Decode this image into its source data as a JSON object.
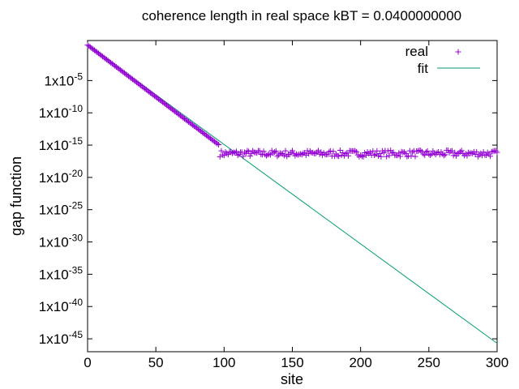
{
  "chart_data": {
    "type": "scatter",
    "title": "coherence length in real space kBT = 0.0400000000",
    "xlabel": "site",
    "ylabel": "gap function",
    "xlim": [
      0,
      300
    ],
    "ylim_log10": [
      -47,
      1.2
    ],
    "yscale": "log",
    "x_ticks": [
      0,
      50,
      100,
      150,
      200,
      250,
      300
    ],
    "x_tick_labels": [
      "0",
      "50",
      "100",
      "150",
      "200",
      "250",
      "300"
    ],
    "y_ticks_log10": [
      -5,
      -10,
      -15,
      -20,
      -25,
      -30,
      -35,
      -40,
      -45
    ],
    "y_tick_labels": [
      {
        "base": "1x10",
        "exp": "-5"
      },
      {
        "base": "1x10",
        "exp": "-10"
      },
      {
        "base": "1x10",
        "exp": "-15"
      },
      {
        "base": "1x10",
        "exp": "-20"
      },
      {
        "base": "1x10",
        "exp": "-25"
      },
      {
        "base": "1x10",
        "exp": "-30"
      },
      {
        "base": "1x10",
        "exp": "-35"
      },
      {
        "base": "1x10",
        "exp": "-40"
      },
      {
        "base": "1x10",
        "exp": "-45"
      }
    ],
    "grid": false,
    "legend_position": "top-right",
    "series": [
      {
        "name": "real",
        "style": "points",
        "marker": "+",
        "color": "#9400d3",
        "decay_segment": {
          "x_start": 0,
          "x_end": 96,
          "log10_start": 0.5,
          "log10_per_site": -0.1608
        },
        "plateau_segment": {
          "x_start": 97,
          "x_end": 300,
          "log10_center": -16.3,
          "log10_spread": 0.5
        }
      },
      {
        "name": "fit",
        "style": "line",
        "color": "#009e73",
        "points": [
          {
            "x": 0,
            "log10_y": 0.5
          },
          {
            "x": 300,
            "log10_y": -45.7
          }
        ]
      }
    ]
  }
}
